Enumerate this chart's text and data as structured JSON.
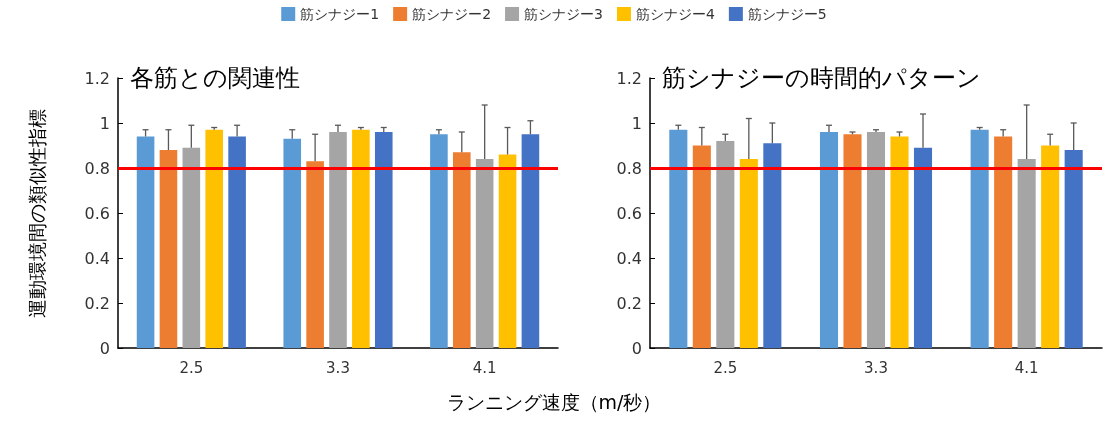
{
  "chart_data": [
    {
      "type": "bar",
      "title": "各筋との関連性",
      "xlabel": "ランニング速度（m/秒）",
      "ylabel": "運動環境間の類似性指標",
      "categories": [
        "2.5",
        "3.3",
        "4.1"
      ],
      "ylim": [
        0,
        1.2
      ],
      "yticks": [
        0,
        0.2,
        0.4,
        0.6,
        0.8,
        1,
        1.2
      ],
      "grid": false,
      "legend": "top",
      "series": [
        {
          "name": "筋シナジー1",
          "color": "#5b9bd5",
          "values": [
            0.94,
            0.93,
            0.95
          ],
          "errors": [
            [
              0.94,
              0.97
            ],
            [
              0.93,
              0.97
            ],
            [
              0.95,
              0.97
            ]
          ]
        },
        {
          "name": "筋シナジー2",
          "color": "#ed7d31",
          "values": [
            0.88,
            0.83,
            0.87
          ],
          "errors": [
            [
              0.88,
              0.97
            ],
            [
              0.83,
              0.95
            ],
            [
              0.87,
              0.96
            ]
          ]
        },
        {
          "name": "筋シナジー3",
          "color": "#a5a5a5",
          "values": [
            0.89,
            0.96,
            0.84
          ],
          "errors": [
            [
              0.89,
              0.99
            ],
            [
              0.96,
              0.99
            ],
            [
              0.84,
              1.08
            ]
          ]
        },
        {
          "name": "筋シナジー4",
          "color": "#ffc000",
          "values": [
            0.97,
            0.97,
            0.86
          ],
          "errors": [
            [
              0.97,
              0.98
            ],
            [
              0.97,
              0.98
            ],
            [
              0.86,
              0.98
            ]
          ]
        },
        {
          "name": "筋シナジー5",
          "color": "#4472c4",
          "values": [
            0.94,
            0.96,
            0.95
          ],
          "errors": [
            [
              0.94,
              0.99
            ],
            [
              0.96,
              0.98
            ],
            [
              0.95,
              1.01
            ]
          ]
        }
      ],
      "ref_lines": [
        {
          "axis": "y",
          "value": 0.8,
          "color": "#ff0000"
        }
      ]
    },
    {
      "type": "bar",
      "title": "筋シナジーの時間的パターン",
      "categories": [
        "2.5",
        "3.3",
        "4.1"
      ],
      "ylim": [
        0,
        1.2
      ],
      "yticks": [
        0,
        0.2,
        0.4,
        0.6,
        0.8,
        1,
        1.2
      ],
      "grid": false,
      "legend": false,
      "series": [
        {
          "color": "#5b9bd5",
          "values": [
            0.97,
            0.96,
            0.97
          ],
          "errors": [
            [
              0.97,
              0.99
            ],
            [
              0.96,
              0.99
            ],
            [
              0.97,
              0.98
            ]
          ]
        },
        {
          "color": "#ed7d31",
          "values": [
            0.9,
            0.95,
            0.94
          ],
          "errors": [
            [
              0.9,
              0.98
            ],
            [
              0.95,
              0.96
            ],
            [
              0.94,
              0.97
            ]
          ]
        },
        {
          "color": "#a5a5a5",
          "values": [
            0.92,
            0.96,
            0.84
          ],
          "errors": [
            [
              0.92,
              0.95
            ],
            [
              0.96,
              0.97
            ],
            [
              0.84,
              1.08
            ]
          ]
        },
        {
          "color": "#ffc000",
          "values": [
            0.84,
            0.94,
            0.9
          ],
          "errors": [
            [
              0.84,
              1.02
            ],
            [
              0.94,
              0.96
            ],
            [
              0.9,
              0.95
            ]
          ]
        },
        {
          "color": "#4472c4",
          "values": [
            0.91,
            0.89,
            0.88
          ],
          "errors": [
            [
              0.91,
              1.0
            ],
            [
              0.89,
              1.04
            ],
            [
              0.88,
              1.0
            ]
          ]
        }
      ],
      "ref_lines": [
        {
          "axis": "y",
          "value": 0.8,
          "color": "#ff0000"
        }
      ]
    }
  ]
}
